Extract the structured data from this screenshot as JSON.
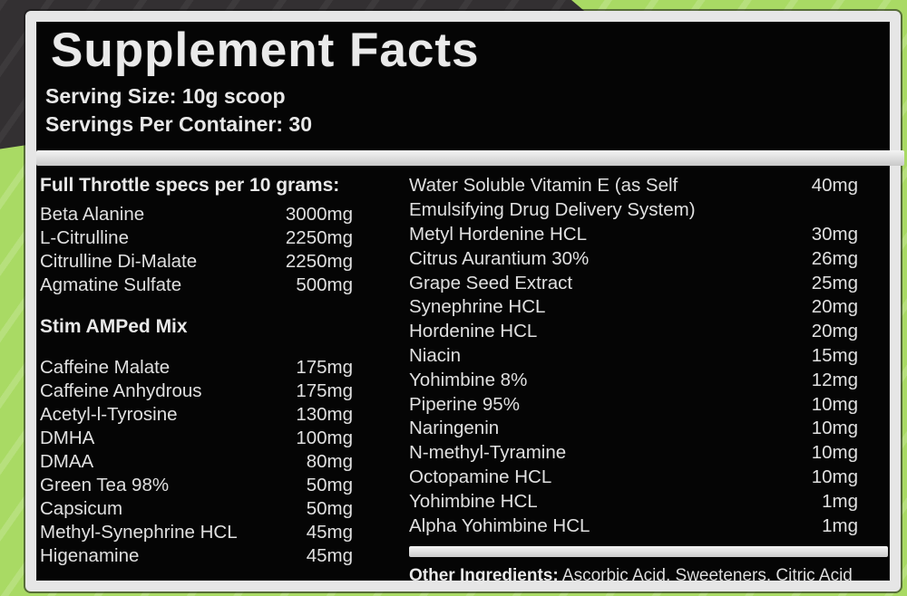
{
  "header": {
    "title": "Supplement Facts",
    "serving_size": "Serving Size: 10g scoop",
    "servings_per_container": "Servings Per Container: 30"
  },
  "left_column": {
    "sections": [
      {
        "heading": "Full Throttle specs per 10 grams:",
        "rows": [
          {
            "name": "Beta Alanine",
            "amount": "3000mg"
          },
          {
            "name": "L-Citrulline",
            "amount": "2250mg"
          },
          {
            "name": "Citrulline Di-Malate",
            "amount": "2250mg"
          },
          {
            "name": "Agmatine Sulfate",
            "amount": "500mg"
          }
        ]
      },
      {
        "heading": "Stim AMPed Mix",
        "rows": [
          {
            "name": "Caffeine Malate",
            "amount": "175mg"
          },
          {
            "name": "Caffeine Anhydrous",
            "amount": "175mg"
          },
          {
            "name": "Acetyl-l-Tyrosine",
            "amount": "130mg"
          },
          {
            "name": "DMHA",
            "amount": "100mg"
          },
          {
            "name": "DMAA",
            "amount": "80mg"
          },
          {
            "name": "Green Tea 98%",
            "amount": "50mg"
          },
          {
            "name": "Capsicum",
            "amount": "50mg"
          },
          {
            "name": "Methyl-Synephrine HCL",
            "amount": "45mg"
          },
          {
            "name": "Higenamine",
            "amount": "45mg"
          }
        ]
      }
    ]
  },
  "right_column": {
    "rows": [
      {
        "name": "Water Soluble Vitamin E (as Self",
        "amount": "40mg"
      },
      {
        "name": "Emulsifying Drug Delivery System)",
        "amount": ""
      },
      {
        "name": "Metyl Hordenine HCL",
        "amount": "30mg"
      },
      {
        "name": "Citrus Aurantium 30%",
        "amount": "26mg"
      },
      {
        "name": "Grape Seed Extract",
        "amount": "25mg"
      },
      {
        "name": "Synephrine HCL",
        "amount": "20mg"
      },
      {
        "name": "Hordenine HCL",
        "amount": "20mg"
      },
      {
        "name": "Niacin",
        "amount": "15mg"
      },
      {
        "name": "Yohimbine 8%",
        "amount": "12mg"
      },
      {
        "name": "Piperine 95%",
        "amount": "10mg"
      },
      {
        "name": "Naringenin",
        "amount": "10mg"
      },
      {
        "name": "N-methyl-Tyramine",
        "amount": "10mg"
      },
      {
        "name": "Octopamine HCL",
        "amount": "10mg"
      },
      {
        "name": "Yohimbine HCL",
        "amount": "1mg"
      },
      {
        "name": "Alpha Yohimbine HCL",
        "amount": "1mg"
      }
    ],
    "other_ingredients": {
      "label": "Other Ingredients:",
      "value": " Ascorbic Acid, Sweeteners, Citric Acid"
    }
  },
  "colors": {
    "accent_green": "#a9da64",
    "background_dark": "#333032",
    "label_background": "#050505",
    "label_border": "#e6e6e6",
    "divider": "#d9d9d9",
    "text": "#e3e3e3"
  }
}
